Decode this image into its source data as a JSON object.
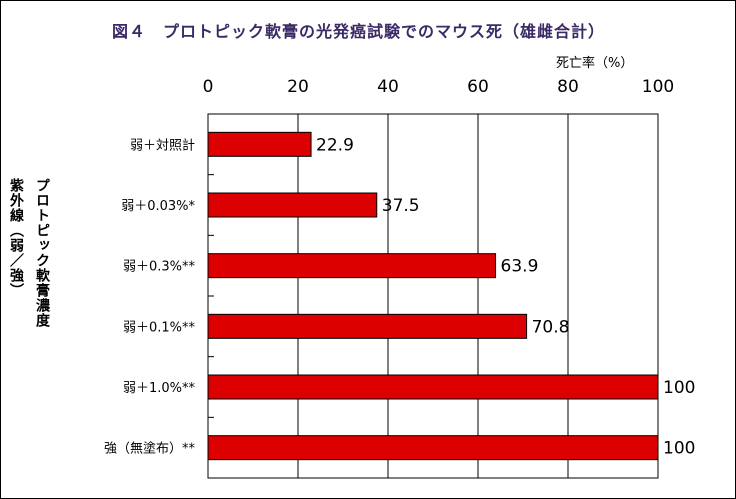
{
  "title": "図４　プロトピック軟膏の光発癌試験でのマウス死（雄雌合計）",
  "unit_label": "死亡率（%）",
  "y_axis_label": {
    "line1": "プロトピック軟膏濃度",
    "line2": "紫外線（弱／強）"
  },
  "colors": {
    "bar": "#dd0000",
    "bar_stroke": "#000000",
    "grid": "#000000"
  },
  "chart_data": {
    "type": "bar",
    "orientation": "horizontal",
    "categories": [
      "弱＋対照計",
      "弱＋0.03%*",
      "弱＋0.3%**",
      "弱＋0.1%**",
      "弱＋1.0%**",
      "強（無塗布）**"
    ],
    "values": [
      22.9,
      37.5,
      63.9,
      70.8,
      100,
      100
    ],
    "value_labels": [
      "22.9",
      "37.5",
      "63.9",
      "70.8",
      "100",
      "100"
    ],
    "xlim": [
      0,
      100
    ],
    "xticks": [
      0,
      20,
      40,
      60,
      80,
      100
    ],
    "x_tick_labels": [
      "0",
      "20",
      "40",
      "60",
      "80",
      "100"
    ],
    "xlabel": "死亡率（%）",
    "ylabel": "プロトピック軟膏濃度 紫外線（弱／強）",
    "grid": true,
    "axis_position": "top"
  }
}
